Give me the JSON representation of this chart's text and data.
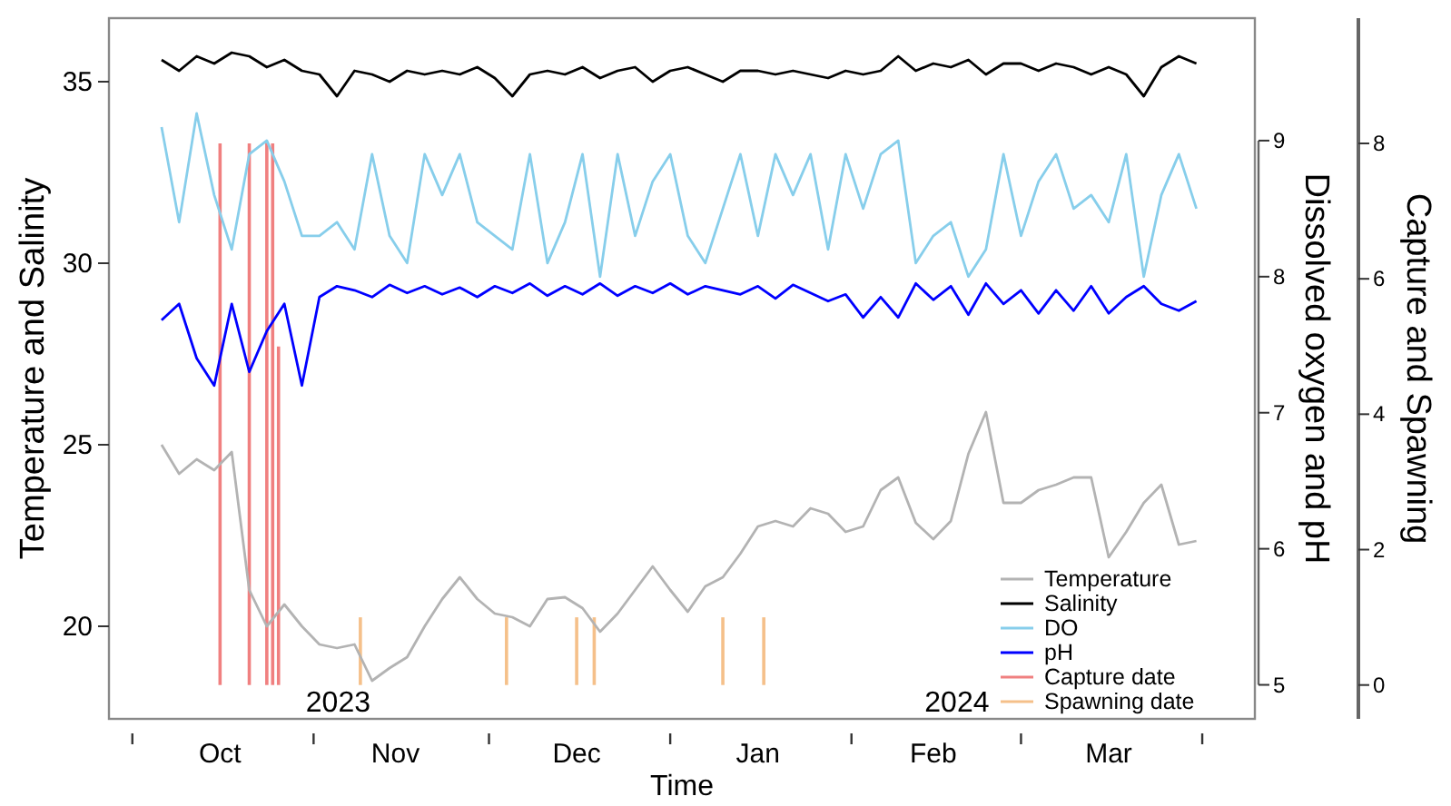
{
  "chart_data": {
    "type": "line",
    "xlabel": "Time",
    "ylabel": "Temperature and Salinity",
    "y2label": "Dissolved oxygen and pH",
    "y3label": "Capture and Spawning",
    "x": [
      "2023-10-06",
      "2023-10-09",
      "2023-10-12",
      "2023-10-15",
      "2023-10-18",
      "2023-10-21",
      "2023-10-24",
      "2023-10-27",
      "2023-10-30",
      "2023-11-02",
      "2023-11-05",
      "2023-11-08",
      "2023-11-11",
      "2023-11-14",
      "2023-11-17",
      "2023-11-20",
      "2023-11-23",
      "2023-11-26",
      "2023-11-29",
      "2023-12-02",
      "2023-12-05",
      "2023-12-08",
      "2023-12-11",
      "2023-12-14",
      "2023-12-17",
      "2023-12-20",
      "2023-12-23",
      "2023-12-26",
      "2023-12-29",
      "2024-01-01",
      "2024-01-04",
      "2024-01-07",
      "2024-01-10",
      "2024-01-13",
      "2024-01-16",
      "2024-01-19",
      "2024-01-22",
      "2024-01-25",
      "2024-01-28",
      "2024-01-31",
      "2024-02-03",
      "2024-02-06",
      "2024-02-09",
      "2024-02-12",
      "2024-02-15",
      "2024-02-18",
      "2024-02-21",
      "2024-02-24",
      "2024-02-27",
      "2024-03-01",
      "2024-03-04",
      "2024-03-07",
      "2024-03-10",
      "2024-03-13",
      "2024-03-16",
      "2024-03-19",
      "2024-03-22",
      "2024-03-25",
      "2024-03-28",
      "2024-03-31"
    ],
    "series": [
      {
        "name": "Temperature",
        "color": "#b3b3b3",
        "values": [
          25,
          24.2,
          24.6,
          24.3,
          24.8,
          21,
          20,
          20.6,
          20,
          19.5,
          19.4,
          19.5,
          18.5,
          18.85,
          19.15,
          20,
          20.75,
          21.35,
          20.75,
          20.35,
          20.25,
          20,
          20.75,
          20.8,
          20.5,
          19.85,
          20.35,
          21,
          21.65,
          21,
          20.4,
          21.1,
          21.35,
          22,
          22.75,
          22.9,
          22.75,
          23.25,
          23.1,
          22.6,
          22.75,
          23.75,
          24.1,
          22.85,
          22.4,
          22.9,
          24.75,
          25.9,
          23.4,
          23.4,
          23.75,
          23.9,
          24.1,
          24.1,
          21.9,
          22.6,
          23.4,
          23.9,
          22.25,
          22.35
        ]
      },
      {
        "name": "Salinity",
        "color": "#000000",
        "values": [
          35.6,
          35.3,
          35.7,
          35.5,
          35.8,
          35.7,
          35.4,
          35.6,
          35.3,
          35.2,
          34.6,
          35.3,
          35.2,
          35,
          35.3,
          35.2,
          35.3,
          35.2,
          35.4,
          35.1,
          34.6,
          35.2,
          35.3,
          35.2,
          35.4,
          35.1,
          35.3,
          35.4,
          35,
          35.3,
          35.4,
          35.2,
          35,
          35.3,
          35.3,
          35.2,
          35.3,
          35.2,
          35.1,
          35.3,
          35.2,
          35.3,
          35.7,
          35.3,
          35.5,
          35.4,
          35.6,
          35.2,
          35.5,
          35.5,
          35.3,
          35.5,
          35.4,
          35.2,
          35.4,
          35.2,
          34.6,
          35.4,
          35.7,
          35.5
        ]
      },
      {
        "name": "DO",
        "color": "#87ceeb",
        "axis": "y2",
        "values": [
          9.1,
          8.4,
          9.2,
          8.6,
          8.2,
          8.9,
          9,
          8.7,
          8.3,
          8.3,
          8.4,
          8.2,
          8.9,
          8.3,
          8.1,
          8.9,
          8.6,
          8.9,
          8.4,
          8.3,
          8.2,
          8.9,
          8.1,
          8.4,
          8.9,
          8,
          8.9,
          8.3,
          8.7,
          8.9,
          8.3,
          8.1,
          8.5,
          8.9,
          8.3,
          8.9,
          8.6,
          8.9,
          8.2,
          8.9,
          8.5,
          8.9,
          9,
          8.1,
          8.3,
          8.4,
          8,
          8.2,
          8.9,
          8.3,
          8.7,
          8.9,
          8.5,
          8.6,
          8.4,
          8.9,
          8,
          8.6,
          8.9,
          8.5
        ]
      },
      {
        "name": "pH",
        "color": "#0000ff",
        "axis": "y2",
        "values": [
          7.68,
          7.8,
          7.4,
          7.2,
          7.8,
          7.3,
          7.6,
          7.8,
          7.2,
          7.85,
          7.93,
          7.9,
          7.85,
          7.94,
          7.88,
          7.93,
          7.87,
          7.92,
          7.85,
          7.93,
          7.88,
          7.95,
          7.86,
          7.93,
          7.87,
          7.95,
          7.86,
          7.93,
          7.88,
          7.95,
          7.87,
          7.93,
          7.9,
          7.87,
          7.93,
          7.84,
          7.94,
          7.88,
          7.82,
          7.87,
          7.7,
          7.85,
          7.7,
          7.95,
          7.83,
          7.93,
          7.72,
          7.95,
          7.8,
          7.9,
          7.73,
          7.9,
          7.75,
          7.93,
          7.73,
          7.85,
          7.93,
          7.8,
          7.75,
          7.82
        ]
      },
      {
        "name": "Capture date",
        "type": "bar",
        "color": "#f08080",
        "axis": "y3",
        "x": [
          "2023-10-16",
          "2023-10-21",
          "2023-10-24",
          "2023-10-25",
          "2023-10-26"
        ],
        "values": [
          8,
          8,
          8,
          8,
          5
        ]
      },
      {
        "name": "Spawning date",
        "type": "bar",
        "color": "#f5c08a",
        "axis": "y3",
        "x": [
          "2023-11-09",
          "2023-12-04",
          "2023-12-16",
          "2023-12-19",
          "2024-01-10",
          "2024-01-17"
        ],
        "values": [
          1,
          1,
          1,
          1,
          1,
          1
        ]
      }
    ],
    "xlim": [
      "2023-09-27",
      "2024-04-10"
    ],
    "xticks": [
      {
        "value": "2023-10-01",
        "label": null
      },
      {
        "value": "2023-10-16",
        "label": "Oct"
      },
      {
        "value": "2023-11-01",
        "label": null
      },
      {
        "value": "2023-11-15",
        "label": "Nov"
      },
      {
        "value": "2023-12-01",
        "label": null
      },
      {
        "value": "2023-12-16",
        "label": "Dec"
      },
      {
        "value": "2024-01-01",
        "label": null
      },
      {
        "value": "2024-01-16",
        "label": "Jan"
      },
      {
        "value": "2024-02-01",
        "label": null
      },
      {
        "value": "2024-02-15",
        "label": "Feb"
      },
      {
        "value": "2024-03-01",
        "label": null
      },
      {
        "value": "2024-03-16",
        "label": "Mar"
      },
      {
        "value": "2024-04-01",
        "label": null
      }
    ],
    "ylim": [
      17.45,
      36.75
    ],
    "yticks": [
      20,
      25,
      30,
      35
    ],
    "y2lim": [
      4.75,
      9.9
    ],
    "y2ticks": [
      5,
      6,
      7,
      8,
      9
    ],
    "y3lim": [
      -0.5,
      9.85
    ],
    "y3ticks": [
      0,
      2,
      4,
      6,
      8
    ],
    "annotations": [
      "2023",
      "2024"
    ],
    "legend": "bottom right"
  }
}
